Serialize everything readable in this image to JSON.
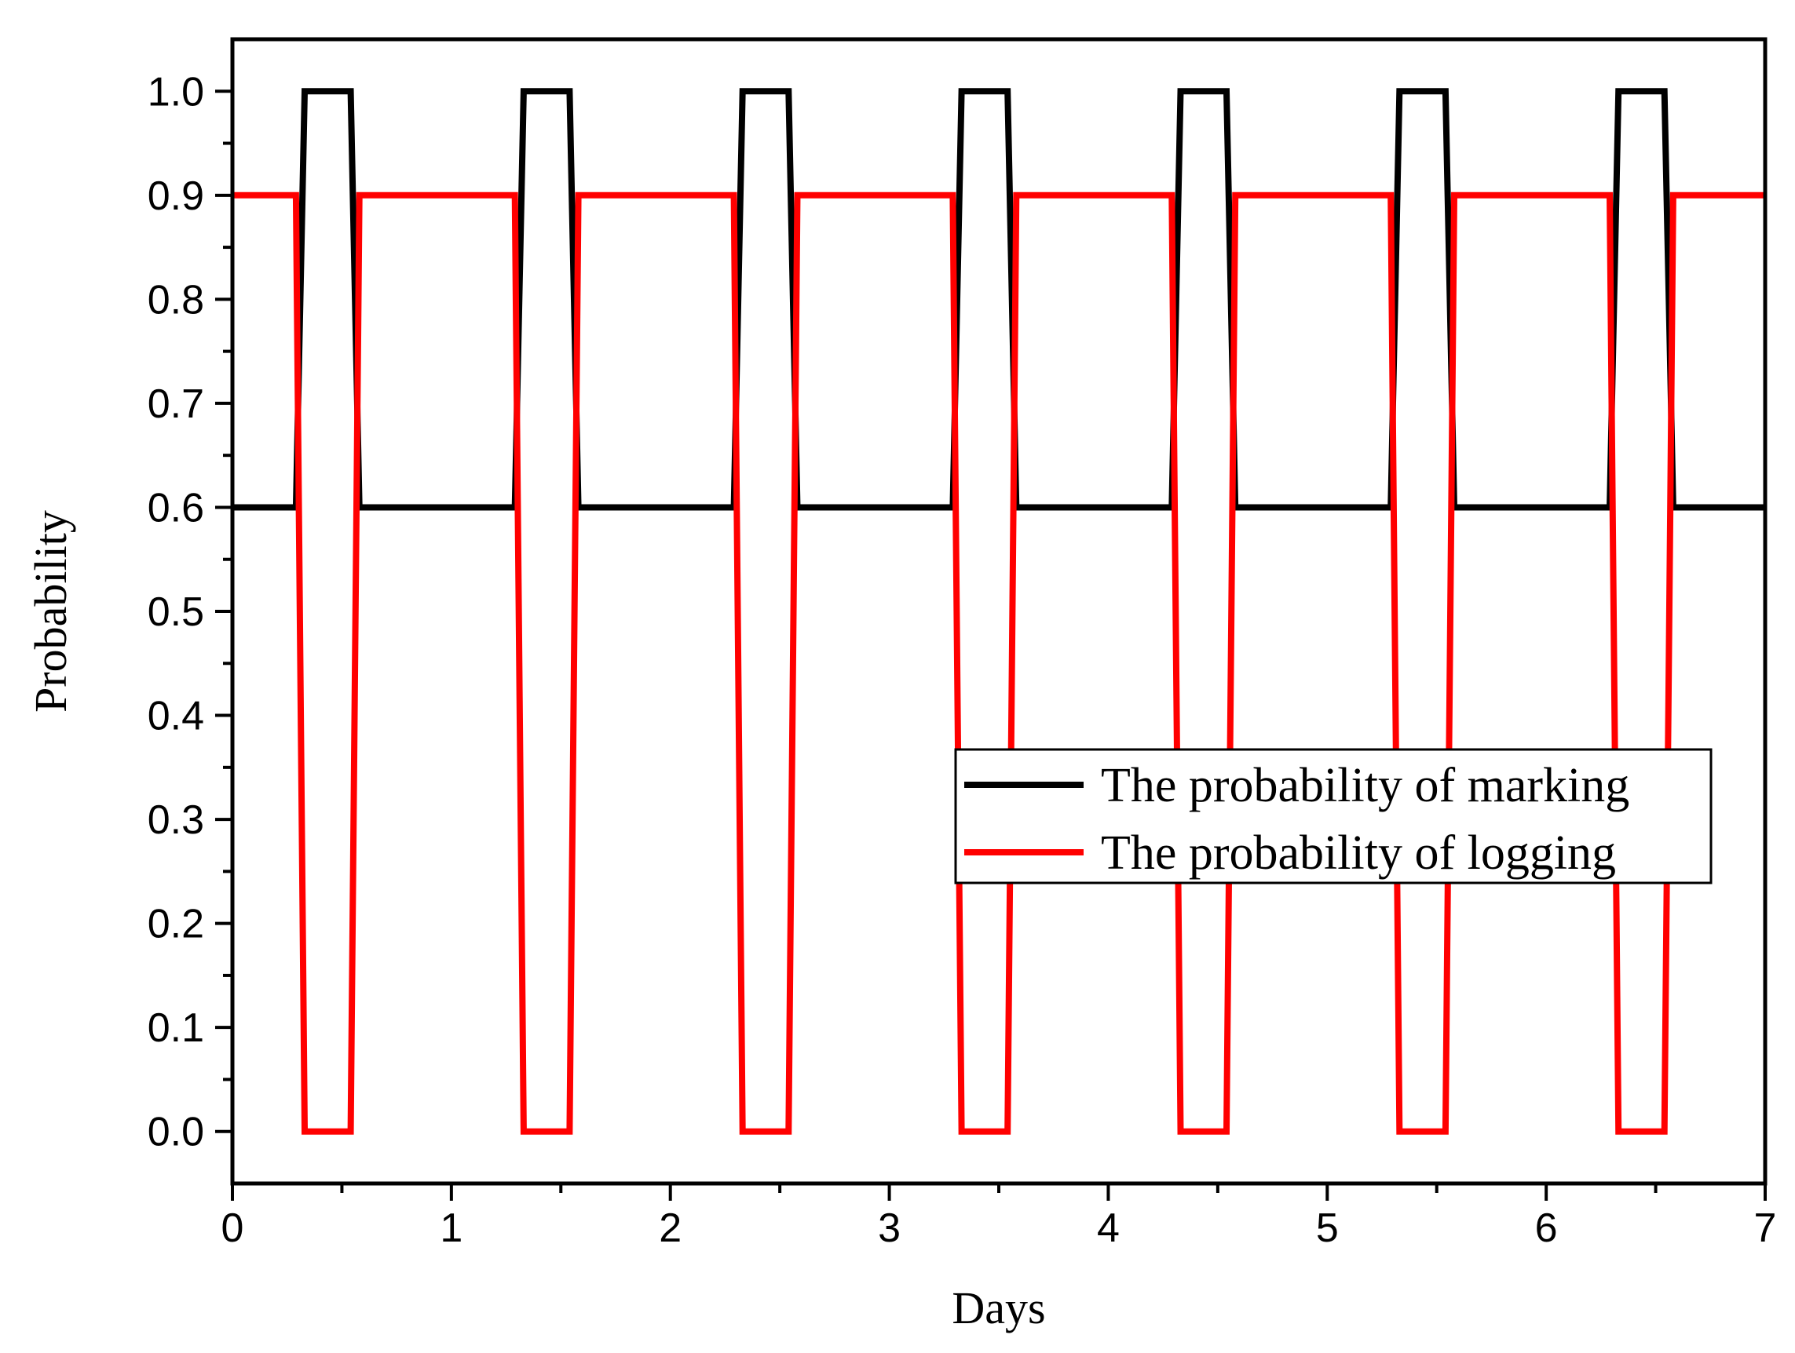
{
  "chart_data": {
    "type": "line",
    "title": "",
    "xlabel": "Days",
    "ylabel": "Probability",
    "xlim": [
      0,
      7
    ],
    "ylim": [
      -0.05,
      1.05
    ],
    "x_ticks": [
      "0",
      "1",
      "2",
      "3",
      "4",
      "5",
      "6",
      "7"
    ],
    "y_ticks": [
      "0.0",
      "0.1",
      "0.2",
      "0.3",
      "0.4",
      "0.5",
      "0.6",
      "0.7",
      "0.8",
      "0.9",
      "1.0"
    ],
    "grid": false,
    "legend_position": "center-right",
    "series": [
      {
        "name": "The probability of marking",
        "color": "#000000",
        "x": [
          0,
          0.29,
          0.33,
          0.54,
          0.58,
          1.29,
          1.33,
          1.54,
          1.58,
          2.29,
          2.33,
          2.54,
          2.58,
          3.29,
          3.33,
          3.54,
          3.58,
          4.29,
          4.33,
          4.54,
          4.58,
          5.29,
          5.33,
          5.54,
          5.58,
          6.29,
          6.33,
          6.54,
          6.58,
          7
        ],
        "y": [
          0.6,
          0.6,
          1.0,
          1.0,
          0.6,
          0.6,
          1.0,
          1.0,
          0.6,
          0.6,
          1.0,
          1.0,
          0.6,
          0.6,
          1.0,
          1.0,
          0.6,
          0.6,
          1.0,
          1.0,
          0.6,
          0.6,
          1.0,
          1.0,
          0.6,
          0.6,
          1.0,
          1.0,
          0.6,
          0.6
        ]
      },
      {
        "name": "The probability of logging",
        "color": "#ff0000",
        "x": [
          0,
          0.29,
          0.33,
          0.54,
          0.58,
          1.29,
          1.33,
          1.54,
          1.58,
          2.29,
          2.33,
          2.54,
          2.58,
          3.29,
          3.33,
          3.54,
          3.58,
          4.29,
          4.33,
          4.54,
          4.58,
          5.29,
          5.33,
          5.54,
          5.58,
          6.29,
          6.33,
          6.54,
          6.58,
          7
        ],
        "y": [
          0.9,
          0.9,
          0.0,
          0.0,
          0.9,
          0.9,
          0.0,
          0.0,
          0.9,
          0.9,
          0.0,
          0.0,
          0.9,
          0.9,
          0.0,
          0.0,
          0.9,
          0.9,
          0.0,
          0.0,
          0.9,
          0.9,
          0.0,
          0.0,
          0.9,
          0.9,
          0.0,
          0.0,
          0.9,
          0.9
        ]
      }
    ]
  }
}
